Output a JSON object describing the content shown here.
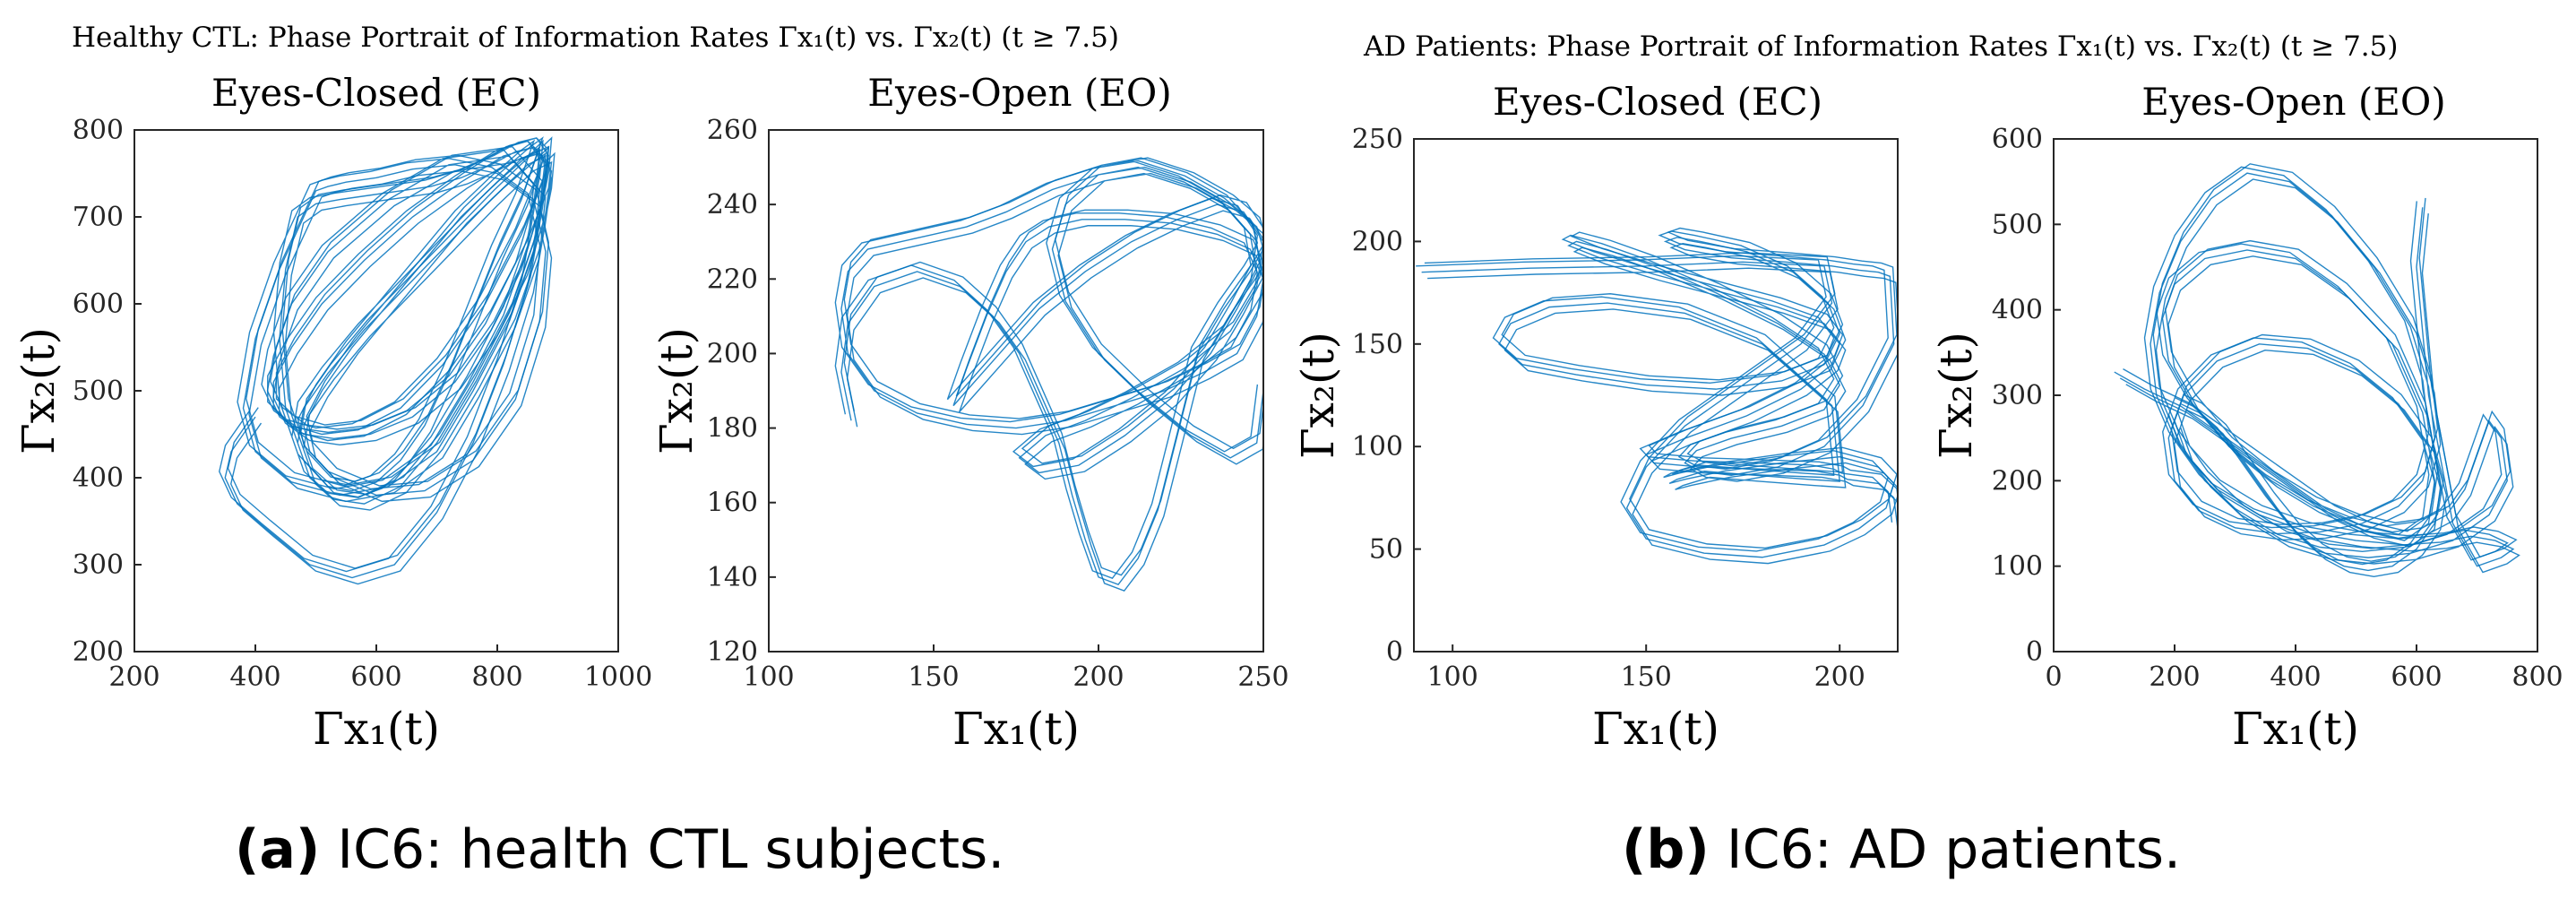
{
  "figure": {
    "panel_a_header": "Healthy CTL: Phase Portrait of Information Rates Γx₁(t) vs. Γx₂(t) (t ≥ 7.5)",
    "panel_b_header": "AD Patients: Phase Portrait of Information Rates Γx₁(t) vs. Γx₂(t) (t ≥ 7.5)",
    "caption_a_label": "(a)",
    "caption_a_text": " IC6: health CTL subjects.",
    "caption_b_label": "(b)",
    "caption_b_text": " IC6: AD patients.",
    "line_color": "#0072BD"
  },
  "chart_data": [
    {
      "id": "ctl_ec",
      "type": "line",
      "title": "Eyes-Closed (EC)",
      "xlabel": "Γx₁(t)",
      "ylabel": "Γx₂(t)",
      "xlim": [
        200,
        1000
      ],
      "ylim": [
        200,
        800
      ],
      "xticks": [
        200,
        400,
        600,
        800,
        1000
      ],
      "yticks": [
        200,
        300,
        400,
        500,
        600,
        700,
        800
      ],
      "series": [
        {
          "name": "trajectory",
          "x": [
            400,
            360,
            350,
            370,
            420,
            490,
            560,
            630,
            700,
            760,
            810,
            850,
            870,
            880,
            875,
            860,
            830,
            790,
            740,
            690,
            640,
            590,
            540,
            500,
            470,
            450,
            440,
            450,
            480,
            520,
            560,
            600,
            640,
            680,
            720,
            760,
            800,
            840,
            860,
            870,
            850,
            800,
            740,
            680,
            620,
            560,
            510,
            480,
            490,
            530,
            600,
            680,
            760,
            830,
            870,
            880,
            860,
            800,
            730,
            660,
            600,
            550,
            520,
            500,
            480,
            440,
            400,
            380,
            400,
            460,
            540,
            620,
            700,
            760,
            820,
            860,
            870,
            820,
            720,
            620,
            520,
            460,
            430,
            420,
            440,
            480,
            530,
            590,
            660,
            730,
            790,
            840,
            870,
            880,
            860,
            810,
            740,
            660,
            580,
            510,
            460,
            430,
            430,
            460,
            510,
            570,
            640,
            710,
            780,
            840,
            875,
            880,
            850,
            790,
            720,
            650,
            580,
            520,
            480,
            470,
            490,
            530,
            580,
            640,
            700,
            760,
            820,
            860,
            880,
            885,
            870
          ],
          "y": [
            470,
            430,
            400,
            370,
            340,
            300,
            285,
            300,
            360,
            440,
            530,
            620,
            700,
            750,
            770,
            780,
            775,
            760,
            745,
            735,
            730,
            725,
            720,
            715,
            700,
            640,
            560,
            480,
            420,
            390,
            385,
            395,
            420,
            460,
            520,
            590,
            660,
            720,
            760,
            780,
            770,
            740,
            700,
            650,
            600,
            550,
            500,
            460,
            430,
            400,
            380,
            385,
            420,
            490,
            580,
            660,
            720,
            750,
            760,
            755,
            745,
            740,
            735,
            730,
            700,
            640,
            560,
            480,
            430,
            395,
            380,
            390,
            430,
            500,
            580,
            660,
            730,
            770,
            760,
            720,
            660,
            600,
            540,
            500,
            470,
            450,
            445,
            450,
            470,
            510,
            570,
            640,
            710,
            760,
            780,
            770,
            740,
            700,
            650,
            600,
            550,
            510,
            480,
            460,
            450,
            455,
            480,
            530,
            600,
            680,
            740,
            770,
            760,
            720,
            670,
            620,
            570,
            520,
            480,
            440,
            400,
            375,
            370,
            390,
            440,
            510,
            590,
            670,
            740,
            780,
            770
          ]
        }
      ]
    },
    {
      "id": "ctl_eo",
      "type": "line",
      "title": "Eyes-Open (EO)",
      "xlabel": "Γx₁(t)",
      "ylabel": "Γx₂(t)",
      "xlim": [
        100,
        250
      ],
      "ylim": [
        120,
        260
      ],
      "xticks": [
        100,
        150,
        200,
        250
      ],
      "yticks": [
        120,
        140,
        160,
        180,
        200,
        220,
        240,
        260
      ],
      "series": [
        {
          "name": "trajectory",
          "x": [
            125,
            122,
            124,
            132,
            145,
            158,
            168,
            176,
            182,
            188,
            192,
            196,
            200,
            206,
            212,
            218,
            222,
            226,
            230,
            238,
            246,
            250,
            248,
            240,
            228,
            214,
            200,
            186,
            172,
            160,
            150,
            140,
            130,
            124,
            122,
            124,
            132,
            145,
            160,
            175,
            190,
            205,
            220,
            232,
            242,
            248,
            250,
            246,
            236,
            222,
            208,
            195,
            185,
            178,
            172,
            166,
            160,
            156,
            160,
            170,
            182,
            196,
            210,
            224,
            236,
            244,
            250,
            248,
            240,
            226,
            210,
            196,
            184,
            176,
            182,
            194,
            208,
            222,
            234,
            242,
            248,
            246,
            238,
            226,
            212,
            200,
            190,
            186,
            190,
            200,
            214,
            228,
            240,
            248,
            250
          ],
          "y": [
            182,
            195,
            208,
            218,
            222,
            218,
            210,
            200,
            188,
            176,
            162,
            150,
            140,
            138,
            145,
            158,
            172,
            186,
            200,
            212,
            222,
            228,
            234,
            240,
            246,
            250,
            248,
            244,
            238,
            234,
            232,
            230,
            228,
            222,
            212,
            200,
            190,
            184,
            181,
            180,
            182,
            186,
            190,
            195,
            200,
            210,
            220,
            228,
            232,
            235,
            236,
            236,
            234,
            230,
            222,
            210,
            196,
            186,
            190,
            200,
            212,
            222,
            230,
            236,
            240,
            238,
            230,
            218,
            206,
            196,
            188,
            182,
            178,
            172,
            168,
            170,
            178,
            188,
            200,
            212,
            222,
            232,
            240,
            246,
            250,
            248,
            240,
            228,
            214,
            200,
            188,
            178,
            172,
            176,
            190
          ]
        }
      ]
    },
    {
      "id": "ad_ec",
      "type": "line",
      "title": "Eyes-Closed (EC)",
      "xlabel": "Γx₁(t)",
      "ylabel": "Γx₂(t)",
      "xlim": [
        90,
        215
      ],
      "ylim": [
        0,
        250
      ],
      "xticks": [
        100,
        150,
        200
      ],
      "yticks": [
        0,
        50,
        100,
        150,
        200,
        250
      ],
      "series": [
        {
          "name": "trajectory",
          "x": [
            92,
            120,
            150,
            175,
            196,
            198,
            190,
            175,
            160,
            150,
            145,
            150,
            165,
            180,
            196,
            205,
            212,
            214,
            210,
            200,
            185,
            170,
            160,
            156,
            158,
            165,
            178,
            192,
            200,
            198,
            180,
            160,
            140,
            125,
            115,
            112,
            118,
            132,
            150,
            168,
            185,
            196,
            200,
            197,
            188,
            176,
            164,
            158,
            155,
            160,
            172,
            186,
            198,
            205,
            210,
            213,
            214,
            206,
            196,
            184,
            172,
            164,
            160,
            163,
            172,
            185,
            196,
            200,
            196,
            184,
            168,
            152,
            140,
            132,
            130,
            138,
            152,
            168,
            184,
            196,
            200,
            198,
            190,
            176,
            160,
            150,
            152,
            164,
            180,
            194,
            200,
            202,
            210,
            214,
            215
          ],
          "y": [
            185,
            187,
            188,
            190,
            188,
            170,
            150,
            130,
            110,
            90,
            70,
            55,
            48,
            46,
            52,
            60,
            70,
            82,
            90,
            95,
            92,
            88,
            84,
            82,
            84,
            88,
            86,
            84,
            83,
            120,
            150,
            165,
            170,
            168,
            160,
            150,
            140,
            135,
            130,
            128,
            132,
            140,
            155,
            170,
            185,
            195,
            200,
            202,
            200,
            196,
            192,
            190,
            188,
            186,
            185,
            183,
            150,
            120,
            100,
            90,
            86,
            88,
            92,
            98,
            104,
            110,
            118,
            130,
            145,
            160,
            175,
            188,
            196,
            200,
            198,
            192,
            184,
            176,
            168,
            160,
            150,
            140,
            128,
            115,
            104,
            96,
            92,
            90,
            89,
            88,
            86,
            84,
            82,
            75,
            60
          ]
        }
      ]
    },
    {
      "id": "ad_eo",
      "type": "line",
      "title": "Eyes-Open (EO)",
      "xlabel": "Γx₁(t)",
      "ylabel": "Γx₂(t)",
      "xlim": [
        0,
        800
      ],
      "ylim": [
        0,
        600
      ],
      "xticks": [
        0,
        200,
        400,
        600,
        800
      ],
      "yticks": [
        0,
        100,
        200,
        300,
        400,
        500,
        600
      ],
      "series": [
        {
          "name": "trajectory",
          "x": [
            110,
            160,
            220,
            280,
            340,
            400,
            460,
            520,
            580,
            620,
            630,
            610,
            560,
            480,
            400,
            320,
            250,
            200,
            180,
            190,
            230,
            290,
            360,
            430,
            500,
            560,
            610,
            650,
            680,
            700,
            720,
            740,
            750,
            720,
            660,
            590,
            520,
            450,
            380,
            310,
            250,
            200,
            170,
            160,
            175,
            210,
            260,
            320,
            390,
            460,
            530,
            590,
            620,
            630,
            610,
            570,
            510,
            440,
            370,
            300,
            240,
            200,
            190,
            215,
            270,
            340,
            420,
            500,
            570,
            620,
            640,
            630,
            600,
            560,
            520,
            480,
            440,
            400,
            360,
            320,
            280,
            240,
            210,
            200,
            220,
            270,
            340,
            420,
            500,
            580,
            640,
            690,
            730,
            760,
            740,
            700,
            660,
            620,
            600,
            610
          ],
          "y": [
            320,
            300,
            280,
            250,
            220,
            190,
            160,
            140,
            130,
            150,
            200,
            280,
            360,
            420,
            460,
            470,
            460,
            430,
            390,
            340,
            290,
            240,
            200,
            170,
            150,
            140,
            145,
            160,
            190,
            230,
            270,
            250,
            200,
            160,
            130,
            115,
            110,
            115,
            130,
            160,
            200,
            250,
            300,
            360,
            420,
            480,
            530,
            560,
            550,
            510,
            450,
            380,
            310,
            250,
            200,
            170,
            150,
            140,
            138,
            145,
            165,
            200,
            250,
            300,
            340,
            360,
            355,
            330,
            290,
            240,
            190,
            150,
            120,
            100,
            95,
            100,
            115,
            140,
            175,
            215,
            255,
            280,
            290,
            270,
            230,
            190,
            160,
            140,
            130,
            125,
            128,
            135,
            130,
            120,
            110,
            100,
            150,
            300,
            450,
            520
          ]
        }
      ]
    }
  ]
}
